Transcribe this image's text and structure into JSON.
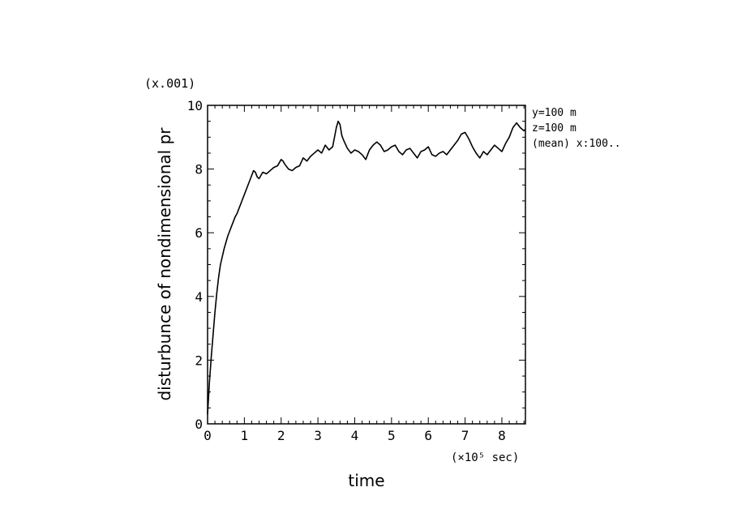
{
  "chart_data": {
    "type": "line",
    "xlabel": "time",
    "ylabel": "disturbunce of nondimensional pr",
    "x_unit_label": "(×10⁵ sec)",
    "y_scale_label": "(x.001)",
    "xlim": [
      0,
      8.64
    ],
    "ylim": [
      0,
      10
    ],
    "x_ticks": [
      0,
      1,
      2,
      3,
      4,
      5,
      6,
      7,
      8
    ],
    "y_ticks": [
      0,
      2,
      4,
      6,
      8,
      10
    ],
    "x_tick_labels": [
      "0",
      "1",
      "2",
      "3",
      "4",
      "5",
      "6",
      "7",
      "8"
    ],
    "y_tick_labels": [
      "0",
      "2",
      "4",
      "6",
      "8",
      "10"
    ],
    "annotations": [
      "y=100 m",
      "z=100 m",
      "(mean) x:100.."
    ],
    "grid": false,
    "series": [
      {
        "color": "#000000",
        "x": [
          0,
          0.05,
          0.1,
          0.15,
          0.2,
          0.25,
          0.3,
          0.35,
          0.4,
          0.45,
          0.5,
          0.55,
          0.6,
          0.65,
          0.7,
          0.75,
          0.8,
          0.85,
          0.9,
          0.95,
          1.0,
          1.05,
          1.1,
          1.15,
          1.2,
          1.25,
          1.3,
          1.35,
          1.4,
          1.5,
          1.6,
          1.7,
          1.8,
          1.9,
          2.0,
          2.05,
          2.1,
          2.2,
          2.3,
          2.4,
          2.5,
          2.6,
          2.7,
          2.8,
          2.9,
          3.0,
          3.1,
          3.2,
          3.3,
          3.4,
          3.5,
          3.55,
          3.6,
          3.65,
          3.7,
          3.8,
          3.9,
          4.0,
          4.1,
          4.2,
          4.3,
          4.4,
          4.5,
          4.6,
          4.7,
          4.8,
          4.9,
          5.0,
          5.1,
          5.2,
          5.3,
          5.4,
          5.5,
          5.6,
          5.7,
          5.8,
          5.9,
          6.0,
          6.1,
          6.2,
          6.3,
          6.4,
          6.5,
          6.6,
          6.7,
          6.8,
          6.9,
          7.0,
          7.1,
          7.2,
          7.3,
          7.4,
          7.5,
          7.6,
          7.7,
          7.8,
          7.9,
          8.0,
          8.1,
          8.2,
          8.3,
          8.4,
          8.5,
          8.6,
          8.64
        ],
        "values": [
          0.3,
          1.3,
          2.1,
          2.8,
          3.5,
          4.1,
          4.6,
          5.0,
          5.25,
          5.5,
          5.7,
          5.9,
          6.05,
          6.2,
          6.35,
          6.5,
          6.6,
          6.75,
          6.9,
          7.05,
          7.2,
          7.35,
          7.5,
          7.65,
          7.8,
          7.95,
          7.9,
          7.75,
          7.7,
          7.9,
          7.85,
          7.95,
          8.05,
          8.1,
          8.3,
          8.25,
          8.15,
          8.0,
          7.95,
          8.05,
          8.1,
          8.35,
          8.25,
          8.4,
          8.5,
          8.6,
          8.5,
          8.75,
          8.6,
          8.7,
          9.3,
          9.5,
          9.4,
          9.05,
          8.9,
          8.65,
          8.5,
          8.6,
          8.55,
          8.45,
          8.3,
          8.6,
          8.75,
          8.85,
          8.75,
          8.55,
          8.6,
          8.7,
          8.75,
          8.55,
          8.45,
          8.6,
          8.65,
          8.5,
          8.35,
          8.55,
          8.6,
          8.7,
          8.45,
          8.4,
          8.5,
          8.55,
          8.45,
          8.6,
          8.75,
          8.9,
          9.1,
          9.15,
          8.95,
          8.7,
          8.5,
          8.35,
          8.55,
          8.45,
          8.6,
          8.75,
          8.65,
          8.55,
          8.8,
          9.0,
          9.3,
          9.45,
          9.3,
          9.2,
          9.25
        ]
      }
    ]
  }
}
